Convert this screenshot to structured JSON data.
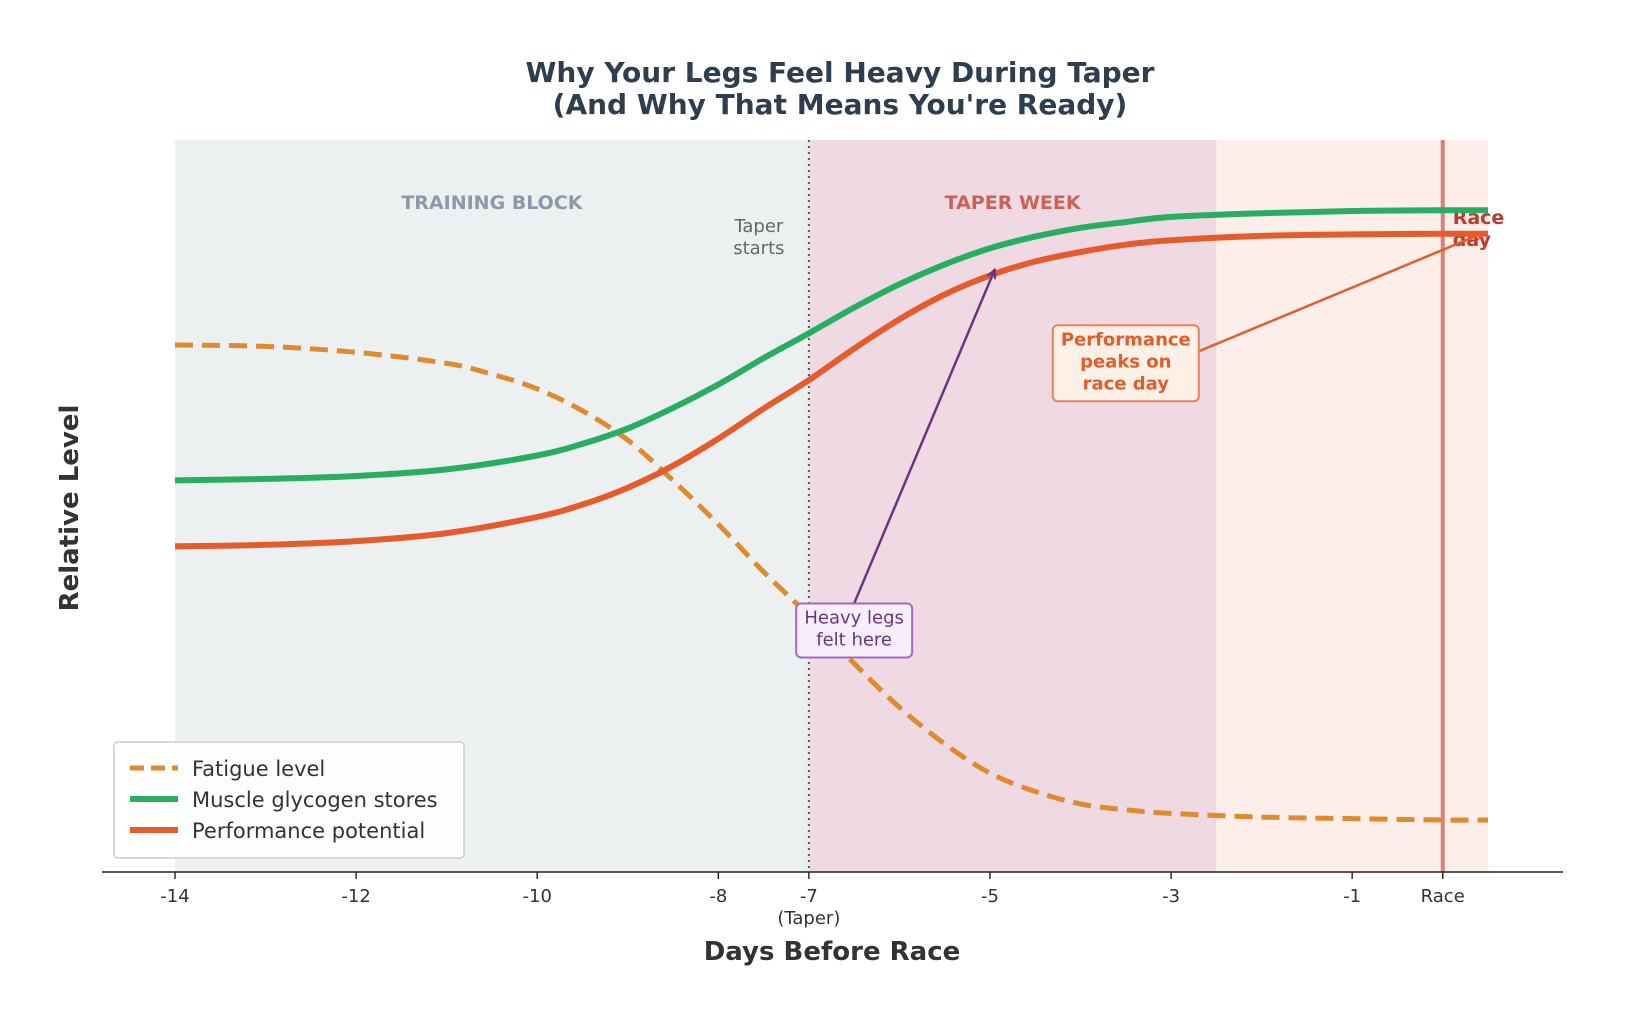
{
  "chart_data": {
    "type": "line",
    "title_lines": [
      "Why Your Legs Feel Heavy During Taper",
      "(And Why That Means You're Ready)"
    ],
    "xlabel": "Days Before Race",
    "ylabel": "Relative Level",
    "xlim": [
      -14.8,
      1.5
    ],
    "ylim": [
      0,
      100
    ],
    "x_ticks": [
      {
        "value": -14,
        "label": "-14"
      },
      {
        "value": -12,
        "label": "-12"
      },
      {
        "value": -10,
        "label": "-10"
      },
      {
        "value": -8,
        "label": "-8"
      },
      {
        "value": -7,
        "label": "-7"
      },
      {
        "value": -5,
        "label": "-5"
      },
      {
        "value": -3,
        "label": "-3"
      },
      {
        "value": -1,
        "label": "-1"
      },
      {
        "value": 0,
        "label": "Race"
      }
    ],
    "taper_tick_sublabel": "(Taper)",
    "y_ticks_shown": false,
    "grid": false,
    "legend_position": "lower-left",
    "regions": [
      {
        "label": "TRAINING BLOCK",
        "x_start": -14,
        "x_end": -7,
        "color": "#ecf0f1",
        "label_color": "#8a9aa9"
      },
      {
        "label": "TAPER WEEK",
        "x_start": -7,
        "x_end": -2.5,
        "color": "#efd9e2",
        "label_color": "#cd6155"
      },
      {
        "label": "",
        "x_start": -2.5,
        "x_end": 0.5,
        "color": "#fdeee9",
        "label_color": ""
      }
    ],
    "vlines": [
      {
        "x": -7,
        "label_lines": [
          "Taper",
          "starts"
        ],
        "style": "dotted",
        "color": "#555555"
      },
      {
        "x": 0,
        "label_lines": [
          "Race",
          "day"
        ],
        "style": "solid",
        "color": "#c0392b"
      }
    ],
    "series": [
      {
        "name": "Fatigue level",
        "style": "dashed",
        "color": "#e08a2e",
        "x": [
          -14,
          -13,
          -12,
          -11,
          -10.5,
          -10,
          -9.5,
          -9,
          -8.5,
          -8,
          -7.5,
          -7,
          -6.5,
          -6,
          -5.5,
          -5,
          -4.5,
          -4,
          -3.5,
          -3,
          -2,
          -1,
          0,
          0.5
        ],
        "y": [
          72,
          71.8,
          71,
          69.5,
          68,
          66,
          63,
          59,
          53.5,
          47.5,
          41,
          35,
          28.5,
          22.5,
          17.5,
          13.5,
          11,
          9.3,
          8.5,
          8,
          7.5,
          7.3,
          7.1,
          7.1
        ]
      },
      {
        "name": "Muscle glycogen stores",
        "style": "solid",
        "color": "#27ae60",
        "x": [
          -14,
          -13,
          -12,
          -11,
          -10,
          -9.5,
          -9,
          -8.5,
          -8,
          -7.5,
          -7,
          -6.5,
          -6,
          -5.5,
          -5,
          -4.5,
          -4,
          -3.5,
          -3,
          -2,
          -1,
          0,
          0.5
        ],
        "y": [
          53.5,
          53.7,
          54.1,
          55,
          56.9,
          58.5,
          60.6,
          63.4,
          66.6,
          70.2,
          73.6,
          77.1,
          80.3,
          83,
          85.2,
          86.8,
          88,
          88.8,
          89.5,
          90,
          90.3,
          90.4,
          90.4
        ]
      },
      {
        "name": "Performance potential",
        "style": "solid",
        "color": "#e55b2c",
        "x": [
          -14,
          -13,
          -12,
          -11,
          -10,
          -9.5,
          -9,
          -8.5,
          -8,
          -7.5,
          -7,
          -6.5,
          -6,
          -5.5,
          -5,
          -4.5,
          -4,
          -3.5,
          -3,
          -2,
          -1,
          0,
          0.5
        ],
        "y": [
          44.5,
          44.7,
          45.2,
          46.3,
          48.5,
          50.2,
          52.5,
          55.5,
          59.2,
          63.3,
          67.2,
          71.5,
          75.5,
          78.9,
          81.5,
          83.4,
          84.7,
          85.7,
          86.3,
          86.9,
          87.1,
          87.2,
          87.2
        ]
      }
    ],
    "annotations": [
      {
        "text_lines": [
          "Heavy legs",
          "felt here"
        ],
        "x": -6.5,
        "y": 33,
        "arrow_to_x": -4.95,
        "arrow_to_y": 82.2,
        "color": "#6c3483",
        "border": "#a569bd",
        "bg": "#f6eef9"
      },
      {
        "text_lines": [
          "Performance",
          "peaks on",
          "race day"
        ],
        "x": -3.5,
        "y": 69.5,
        "arrow_to_x": 0.45,
        "arrow_to_y": 87.3,
        "color": "#e55b2c",
        "border": "#eb7f58",
        "bg": "#fdf0e6"
      }
    ]
  }
}
